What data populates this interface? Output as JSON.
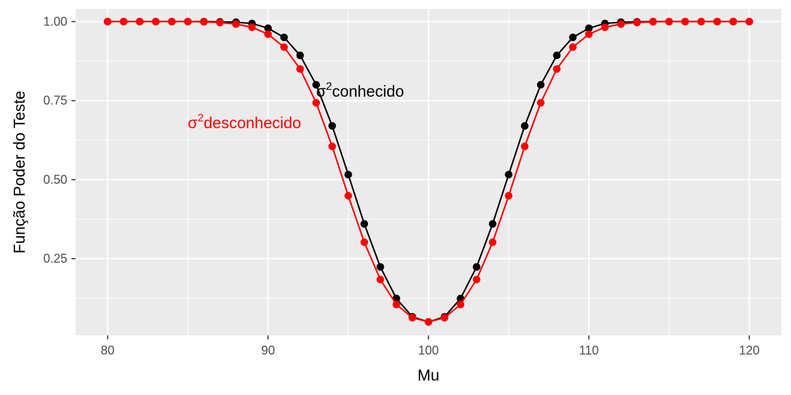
{
  "chart_data": {
    "type": "line",
    "xlabel": "Mu",
    "ylabel": "Função Poder do Teste",
    "xlim": [
      78,
      122
    ],
    "ylim": [
      0.0075,
      1.04
    ],
    "x_ticks": [
      80,
      90,
      100,
      110,
      120
    ],
    "y_ticks": [
      0.25,
      0.5,
      0.75,
      1.0
    ],
    "x_tick_labels": [
      "80",
      "90",
      "100",
      "110",
      "120"
    ],
    "y_tick_labels": [
      "0.25",
      "0.50",
      "0.75",
      "1.00"
    ],
    "grid": true,
    "background": "#ebebeb",
    "x": [
      80,
      81,
      82,
      83,
      84,
      85,
      86,
      87,
      88,
      89,
      90,
      91,
      92,
      93,
      94,
      95,
      96,
      97,
      98,
      99,
      100,
      101,
      102,
      103,
      104,
      105,
      106,
      107,
      108,
      109,
      110,
      111,
      112,
      113,
      114,
      115,
      116,
      117,
      118,
      119,
      120
    ],
    "series": [
      {
        "color": "#000000",
        "values": [
          1.0,
          1.0,
          1.0,
          1.0,
          1.0,
          1.0,
          1.0,
          0.999,
          0.998,
          0.994,
          0.979,
          0.95,
          0.893,
          0.8,
          0.67,
          0.516,
          0.36,
          0.224,
          0.124,
          0.066,
          0.05,
          0.066,
          0.124,
          0.224,
          0.36,
          0.516,
          0.67,
          0.8,
          0.893,
          0.95,
          0.979,
          0.994,
          0.998,
          0.999,
          1.0,
          1.0,
          1.0,
          1.0,
          1.0,
          1.0,
          1.0
        ]
      },
      {
        "color": "#ff0000",
        "values": [
          1.0,
          1.0,
          1.0,
          1.0,
          1.0,
          1.0,
          0.999,
          0.997,
          0.992,
          0.982,
          0.96,
          0.919,
          0.85,
          0.743,
          0.605,
          0.449,
          0.302,
          0.184,
          0.105,
          0.063,
          0.05,
          0.063,
          0.105,
          0.184,
          0.302,
          0.449,
          0.605,
          0.743,
          0.85,
          0.919,
          0.96,
          0.982,
          0.992,
          0.997,
          0.999,
          1.0,
          1.0,
          1.0,
          1.0,
          1.0,
          1.0
        ]
      }
    ],
    "annotations": [
      {
        "sigma": "σ",
        "sup": "2",
        "text": "conhecido",
        "x": 93,
        "y": 0.78,
        "color": "#000000"
      },
      {
        "sigma": "σ",
        "sup": "2",
        "text": "desconhecido",
        "x": 85,
        "y": 0.68,
        "color": "#ff0000"
      }
    ]
  }
}
